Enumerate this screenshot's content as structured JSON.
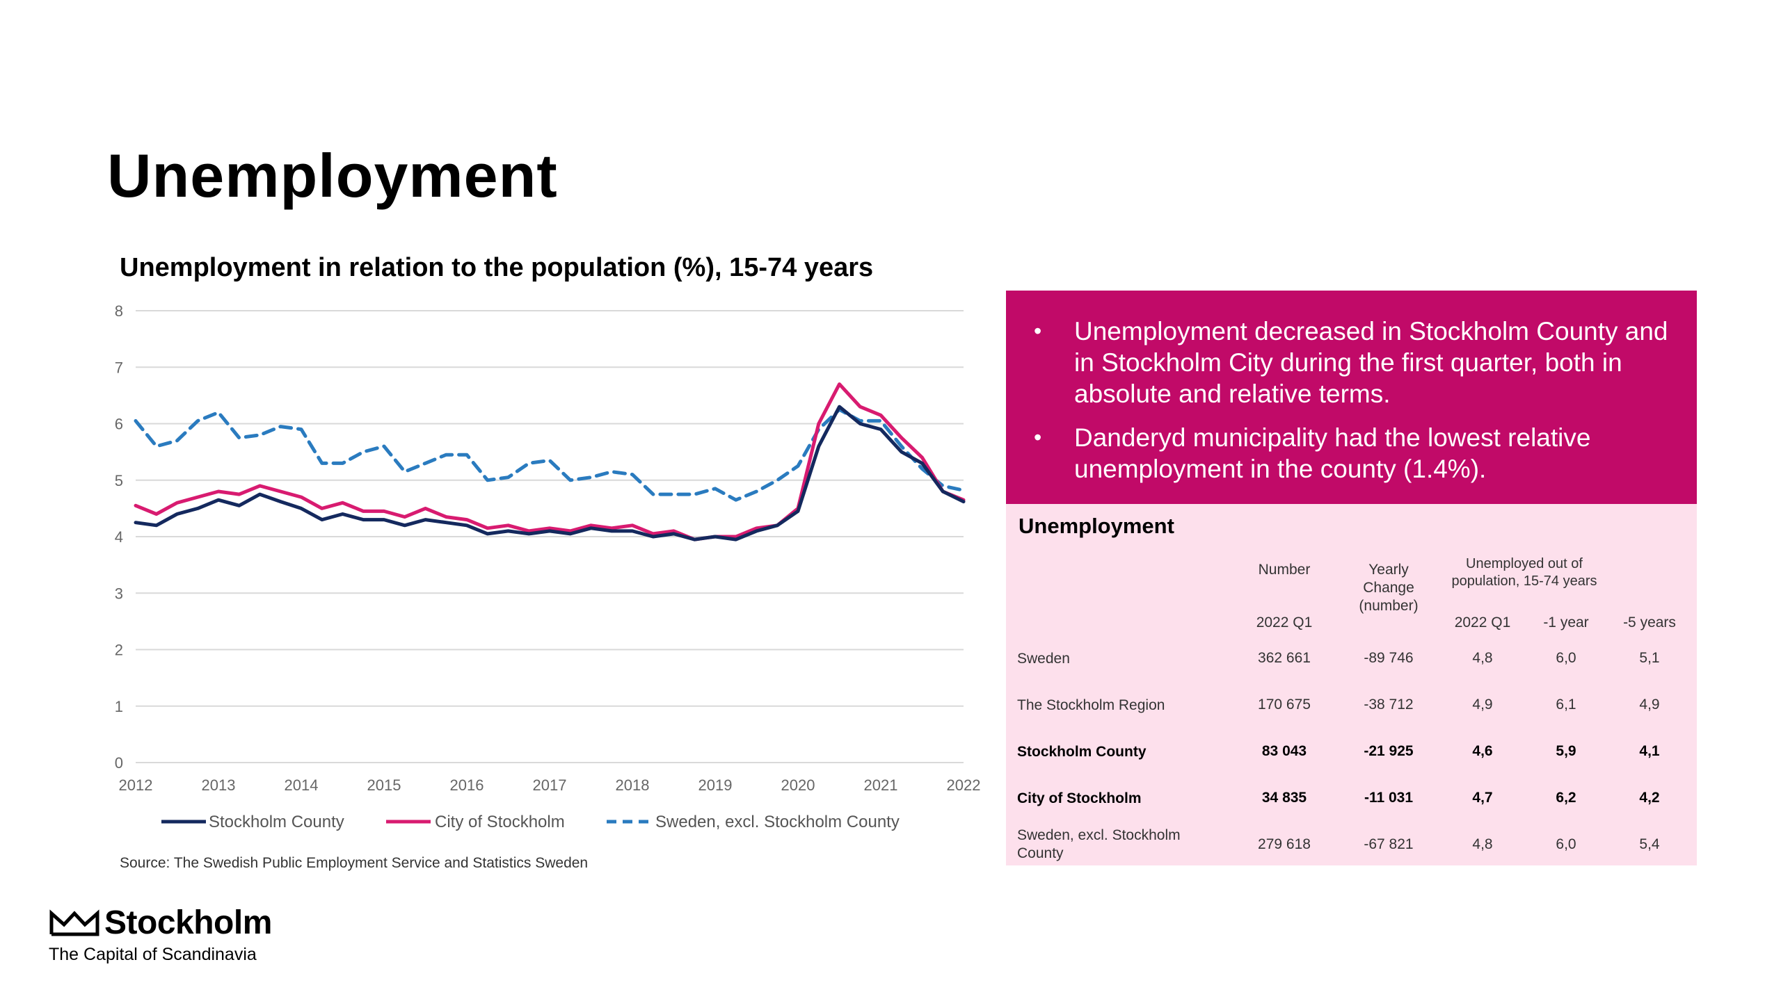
{
  "page": {
    "title": "Unemployment"
  },
  "chart_data": {
    "type": "line",
    "title": "Unemployment in relation to the population (%), 15-74 years",
    "xlabel": "",
    "ylabel": "",
    "ylim": [
      0,
      8
    ],
    "yticks": [
      "0",
      "1",
      "2",
      "3",
      "4",
      "5",
      "6",
      "7",
      "8"
    ],
    "x_tick_labels": [
      "2012",
      "2013",
      "2014",
      "2015",
      "2016",
      "2017",
      "2018",
      "2019",
      "2020",
      "2021",
      "2022"
    ],
    "grid": true,
    "legend_position": "bottom",
    "x": [
      2012.0,
      2012.25,
      2012.5,
      2012.75,
      2013.0,
      2013.25,
      2013.5,
      2013.75,
      2014.0,
      2014.25,
      2014.5,
      2014.75,
      2015.0,
      2015.25,
      2015.5,
      2015.75,
      2016.0,
      2016.25,
      2016.5,
      2016.75,
      2017.0,
      2017.25,
      2017.5,
      2017.75,
      2018.0,
      2018.25,
      2018.5,
      2018.75,
      2019.0,
      2019.25,
      2019.5,
      2019.75,
      2020.0,
      2020.25,
      2020.5,
      2020.75,
      2021.0,
      2021.25,
      2021.5,
      2021.75,
      2022.0
    ],
    "series": [
      {
        "name": "Stockholm County",
        "color": "#14295e",
        "dash": "solid",
        "values": [
          4.25,
          4.2,
          4.4,
          4.5,
          4.65,
          4.55,
          4.75,
          4.62,
          4.5,
          4.3,
          4.4,
          4.3,
          4.3,
          4.2,
          4.3,
          4.25,
          4.2,
          4.05,
          4.1,
          4.05,
          4.1,
          4.05,
          4.15,
          4.1,
          4.1,
          4.0,
          4.05,
          3.95,
          4.0,
          3.95,
          4.1,
          4.2,
          4.45,
          5.6,
          6.3,
          6.0,
          5.9,
          5.5,
          5.3,
          4.8,
          4.62
        ]
      },
      {
        "name": "City of Stockholm",
        "color": "#d81b70",
        "dash": "solid",
        "values": [
          4.55,
          4.4,
          4.6,
          4.7,
          4.8,
          4.75,
          4.9,
          4.8,
          4.7,
          4.5,
          4.6,
          4.45,
          4.45,
          4.35,
          4.5,
          4.35,
          4.3,
          4.15,
          4.2,
          4.1,
          4.15,
          4.1,
          4.2,
          4.15,
          4.2,
          4.05,
          4.1,
          3.95,
          4.0,
          4.0,
          4.15,
          4.2,
          4.5,
          6.0,
          6.7,
          6.3,
          6.15,
          5.75,
          5.4,
          4.8,
          4.65
        ]
      },
      {
        "name": "Sweden, excl. Stockholm County",
        "color": "#2a7bbf",
        "dash": "dashed",
        "values": [
          6.05,
          5.6,
          5.7,
          6.05,
          6.2,
          5.75,
          5.8,
          5.95,
          5.9,
          5.3,
          5.3,
          5.5,
          5.6,
          5.15,
          5.3,
          5.45,
          5.45,
          5.0,
          5.05,
          5.3,
          5.35,
          5.0,
          5.05,
          5.15,
          5.1,
          4.75,
          4.75,
          4.75,
          4.85,
          4.65,
          4.8,
          5.0,
          5.25,
          5.9,
          6.25,
          6.05,
          6.05,
          5.6,
          5.2,
          4.9,
          4.82
        ]
      }
    ]
  },
  "chart": {
    "source": "Source: The Swedish Public Employment Service and Statistics Sweden"
  },
  "logo": {
    "name": "Stockholm",
    "tagline": "The Capital of Scandinavia"
  },
  "highlight": {
    "background": "#c10a68",
    "bullets": [
      "Unemployment decreased in Stockholm County and in Stockholm City during the first quarter, both in absolute and relative terms.",
      "Danderyd municipality had the lowest relative unemployment in the county (1.4%)."
    ]
  },
  "table": {
    "background": "#fde0ec",
    "title": "Unemployment",
    "headers": {
      "number": "Number",
      "yearly_change": "Yearly Change (number)",
      "group": "Unemployed out of population, 15-74 years",
      "period_number": "2022 Q1",
      "period_rate": "2022 Q1",
      "minus1": "-1 year",
      "minus5": "-5 years"
    },
    "rows": [
      {
        "region": "Sweden",
        "number": "362 661",
        "change": "-89 746",
        "q1": "4,8",
        "m1": "6,0",
        "m5": "5,1",
        "bold": false
      },
      {
        "region": "The Stockholm Region",
        "number": "170 675",
        "change": "-38 712",
        "q1": "4,9",
        "m1": "6,1",
        "m5": "4,9",
        "bold": false
      },
      {
        "region": "Stockholm County",
        "number": "83 043",
        "change": "-21 925",
        "q1": "4,6",
        "m1": "5,9",
        "m5": "4,1",
        "bold": true
      },
      {
        "region": "City of Stockholm",
        "number": "34 835",
        "change": "-11 031",
        "q1": "4,7",
        "m1": "6,2",
        "m5": "4,2",
        "bold": true
      },
      {
        "region": "Sweden, excl. Stockholm County",
        "number": "279 618",
        "change": "-67 821",
        "q1": "4,8",
        "m1": "6,0",
        "m5": "5,4",
        "bold": false
      }
    ]
  }
}
